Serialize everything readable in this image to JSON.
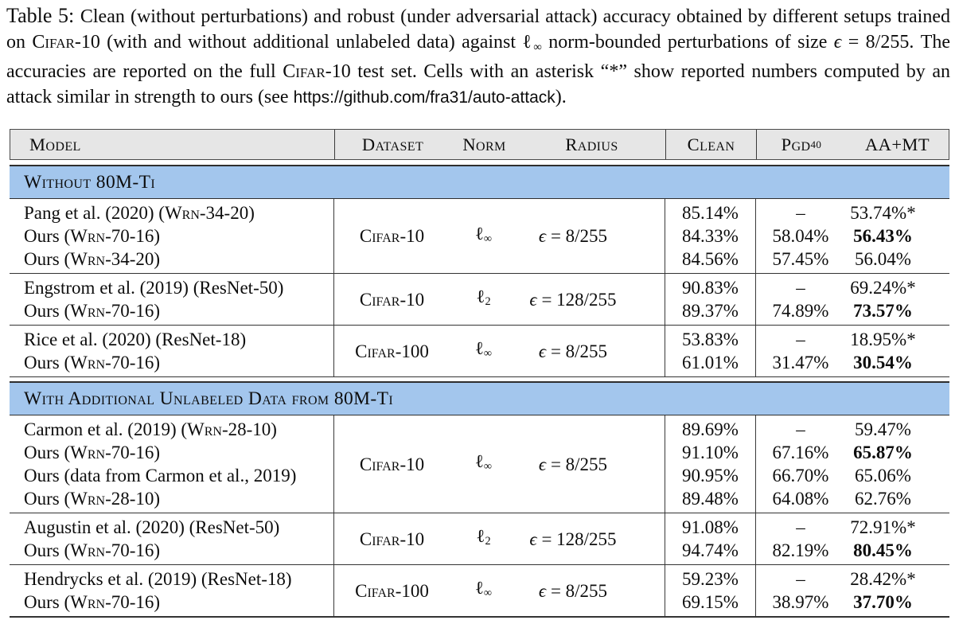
{
  "caption": {
    "segments": [
      {
        "t": "Table 5: ",
        "s": "lbl"
      },
      {
        "t": "Clean (without perturbations) and robust (under adversarial attack) accuracy obtained by different se­tups trained on "
      },
      {
        "t": "Cifar-10",
        "s": "sc"
      },
      {
        "t": " (with and without additional unlabeled data) against "
      },
      {
        "t": "ℓ"
      },
      {
        "t": "∞",
        "s": "sub"
      },
      {
        "t": " norm-bounded perturbations of size "
      },
      {
        "t": "ϵ",
        "s": "i"
      },
      {
        "t": " = 8/255. The accuracies are reported on the full "
      },
      {
        "t": "Cifar-10",
        "s": "sc"
      },
      {
        "t": " test set. Cells with an asterisk “*” show reported numbers computed by an attack similar in strength to ours (see "
      },
      {
        "t": "https://github.com/fra31/auto-attack",
        "s": "url"
      },
      {
        "t": ")."
      }
    ]
  },
  "header": {
    "model": "Model",
    "dataset": "Dataset",
    "norm": "Norm",
    "radius": "Radius",
    "clean": "Clean",
    "pgd": "Pgd",
    "pgd_sup": "40",
    "aamt": "AA+MT"
  },
  "colors": {
    "section_band_blue": "#a3c6ed",
    "header_gray": "#e6e6e6",
    "rule_dark": "#333333"
  },
  "sections": [
    {
      "title": "Without 80M-Ti",
      "groups": [
        {
          "models": [
            [
              {
                "t": "Pang et al. (2020) ("
              },
              {
                "t": "Wrn",
                "s": "sc"
              },
              {
                "t": "-34-20)"
              }
            ],
            [
              {
                "t": "Ours ("
              },
              {
                "t": "Wrn",
                "s": "sc"
              },
              {
                "t": "-70-16)"
              }
            ],
            [
              {
                "t": "Ours ("
              },
              {
                "t": "Wrn",
                "s": "sc"
              },
              {
                "t": "-34-20)"
              }
            ]
          ],
          "dataset": "Cifar-10",
          "norm": [
            {
              "t": "ℓ"
            },
            {
              "t": "∞",
              "s": "sub"
            }
          ],
          "radius": [
            {
              "t": "ϵ",
              "s": "i"
            },
            {
              "t": " = 8/255"
            }
          ],
          "clean": [
            "85.14%",
            "84.33%",
            "84.56%"
          ],
          "pgd": [
            "–",
            "58.04%",
            "57.45%"
          ],
          "aamt": [
            [
              {
                "t": "53.74%*"
              }
            ],
            [
              {
                "t": "56.43%",
                "s": "b"
              }
            ],
            [
              {
                "t": "56.04%"
              }
            ]
          ]
        },
        {
          "models": [
            [
              {
                "t": "Engstrom et al. (2019) (ResNet-50)"
              }
            ],
            [
              {
                "t": "Ours ("
              },
              {
                "t": "Wrn",
                "s": "sc"
              },
              {
                "t": "-70-16)"
              }
            ]
          ],
          "dataset": "Cifar-10",
          "norm": [
            {
              "t": "ℓ"
            },
            {
              "t": "2",
              "s": "sub"
            }
          ],
          "radius": [
            {
              "t": "ϵ",
              "s": "i"
            },
            {
              "t": " = 128/255"
            }
          ],
          "clean": [
            "90.83%",
            "89.37%"
          ],
          "pgd": [
            "–",
            "74.89%"
          ],
          "aamt": [
            [
              {
                "t": "69.24%*"
              }
            ],
            [
              {
                "t": "73.57%",
                "s": "b"
              }
            ]
          ]
        },
        {
          "models": [
            [
              {
                "t": "Rice et al. (2020) (ResNet-18)"
              }
            ],
            [
              {
                "t": "Ours ("
              },
              {
                "t": "Wrn",
                "s": "sc"
              },
              {
                "t": "-70-16)"
              }
            ]
          ],
          "dataset": "Cifar-100",
          "norm": [
            {
              "t": "ℓ"
            },
            {
              "t": "∞",
              "s": "sub"
            }
          ],
          "radius": [
            {
              "t": "ϵ",
              "s": "i"
            },
            {
              "t": " = 8/255"
            }
          ],
          "clean": [
            "53.83%",
            "61.01%"
          ],
          "pgd": [
            "–",
            "31.47%"
          ],
          "aamt": [
            [
              {
                "t": "18.95%*"
              }
            ],
            [
              {
                "t": "30.54%",
                "s": "b"
              }
            ]
          ]
        }
      ]
    },
    {
      "title": "With Additional Unlabeled Data from 80M-Ti",
      "groups": [
        {
          "models": [
            [
              {
                "t": "Carmon et al. (2019) ("
              },
              {
                "t": "Wrn",
                "s": "sc"
              },
              {
                "t": "-28-10)"
              }
            ],
            [
              {
                "t": "Ours ("
              },
              {
                "t": "Wrn",
                "s": "sc"
              },
              {
                "t": "-70-16)"
              }
            ],
            [
              {
                "t": "Ours (data from Carmon et al., 2019)"
              }
            ],
            [
              {
                "t": "Ours ("
              },
              {
                "t": "Wrn",
                "s": "sc"
              },
              {
                "t": "-28-10)"
              }
            ]
          ],
          "dataset": "Cifar-10",
          "norm": [
            {
              "t": "ℓ"
            },
            {
              "t": "∞",
              "s": "sub"
            }
          ],
          "radius": [
            {
              "t": "ϵ",
              "s": "i"
            },
            {
              "t": " = 8/255"
            }
          ],
          "clean": [
            "89.69%",
            "91.10%",
            "90.95%",
            "89.48%"
          ],
          "pgd": [
            "–",
            "67.16%",
            "66.70%",
            "64.08%"
          ],
          "aamt": [
            [
              {
                "t": "59.47%"
              }
            ],
            [
              {
                "t": "65.87%",
                "s": "b"
              }
            ],
            [
              {
                "t": "65.06%"
              }
            ],
            [
              {
                "t": "62.76%"
              }
            ]
          ]
        },
        {
          "models": [
            [
              {
                "t": "Augustin et al. (2020) (ResNet-50)"
              }
            ],
            [
              {
                "t": "Ours ("
              },
              {
                "t": "Wrn",
                "s": "sc"
              },
              {
                "t": "-70-16)"
              }
            ]
          ],
          "dataset": "Cifar-10",
          "norm": [
            {
              "t": "ℓ"
            },
            {
              "t": "2",
              "s": "sub"
            }
          ],
          "radius": [
            {
              "t": "ϵ",
              "s": "i"
            },
            {
              "t": " = 128/255"
            }
          ],
          "clean": [
            "91.08%",
            "94.74%"
          ],
          "pgd": [
            "–",
            "82.19%"
          ],
          "aamt": [
            [
              {
                "t": "72.91%*"
              }
            ],
            [
              {
                "t": "80.45%",
                "s": "b"
              }
            ]
          ]
        },
        {
          "models": [
            [
              {
                "t": "Hendrycks et al. (2019) (ResNet-18)"
              }
            ],
            [
              {
                "t": "Ours ("
              },
              {
                "t": "Wrn",
                "s": "sc"
              },
              {
                "t": "-70-16)"
              }
            ]
          ],
          "dataset": "Cifar-100",
          "norm": [
            {
              "t": "ℓ"
            },
            {
              "t": "∞",
              "s": "sub"
            }
          ],
          "radius": [
            {
              "t": "ϵ",
              "s": "i"
            },
            {
              "t": " = 8/255"
            }
          ],
          "clean": [
            "59.23%",
            "69.15%"
          ],
          "pgd": [
            "–",
            "38.97%"
          ],
          "aamt": [
            [
              {
                "t": "28.42%*"
              }
            ],
            [
              {
                "t": "37.70%",
                "s": "b"
              }
            ]
          ]
        }
      ]
    }
  ]
}
